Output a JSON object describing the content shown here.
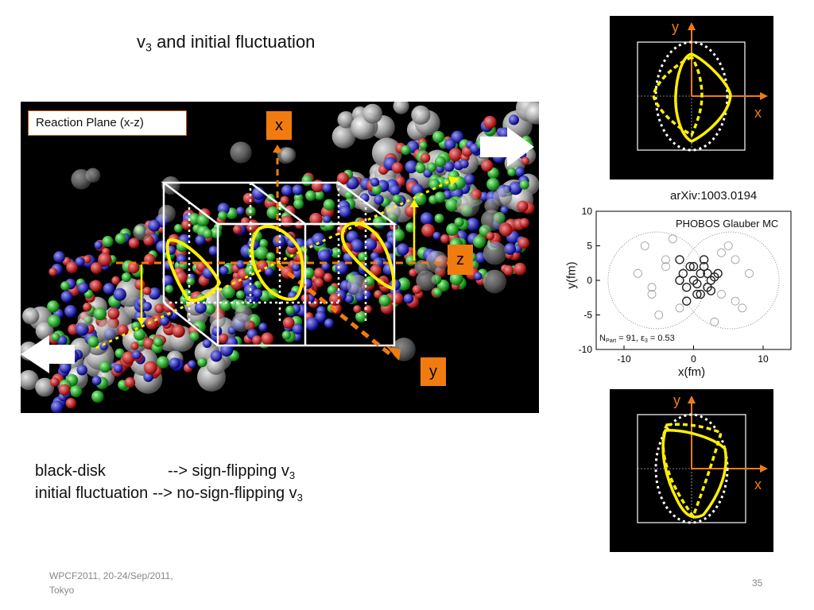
{
  "slide": {
    "title_main": "v",
    "title_sub": "3",
    "title_rest": " and initial fluctuation",
    "reaction_plane_label": "Reaction Plane (x-z)",
    "axis_x": "x",
    "axis_y": "y",
    "axis_z": "z",
    "inset_top": {
      "y_label": "y",
      "x_label": "x"
    },
    "inset_bottom": {
      "y_label": "y",
      "x_label": "x"
    },
    "arxiv_label": "arXiv:1003.0194",
    "glauber_plot": {
      "title": "PHOBOS Glauber MC",
      "ylabel": "y(fm)",
      "xlabel": "x(fm)",
      "annotation": "N",
      "annotation_sub": "Part",
      "annotation_rest": " = 91,  ε",
      "annotation_sub2": "3",
      "annotation_end": " = 0.53"
    },
    "line1": {
      "left": "black-disk",
      "right": "--> sign-flipping v",
      "sub": "3"
    },
    "line2": {
      "left": "initial fluctuation",
      "right": "--> no-sign-flipping v",
      "sub": "3"
    },
    "footer_line1": "WPCF2011, 20-24/Sep/2011,",
    "footer_line2": "Tokyo",
    "page_number": "35"
  },
  "chart_data": {
    "type": "scatter",
    "title": "PHOBOS Glauber MC",
    "xlabel": "x(fm)",
    "ylabel": "y(fm)",
    "xlim": [
      -14,
      14
    ],
    "ylim": [
      -10,
      10
    ],
    "xticks": [
      -10,
      0,
      10
    ],
    "yticks": [
      -10,
      -5,
      0,
      5,
      10
    ],
    "series": [
      {
        "values_desc": "spectator/participant nucleons",
        "x": [
          -8,
          -6,
          -4,
          -2,
          0,
          2,
          4,
          6,
          8,
          -7,
          -5,
          -3,
          3,
          5,
          7,
          -6,
          -4,
          4,
          6
        ],
        "y": [
          1,
          -2,
          3,
          -4,
          2,
          -1,
          4,
          -3,
          1,
          5,
          -5,
          6,
          -6,
          5,
          -4,
          -1,
          2,
          -2,
          3
        ]
      },
      {
        "x": [
          -2,
          -1.5,
          -1,
          -0.5,
          0,
          0.5,
          1,
          1.5,
          2,
          2.5,
          -1,
          0,
          1,
          2,
          3,
          -2,
          0.5,
          1.5,
          2.5,
          3.5
        ],
        "y": [
          3,
          1,
          -1,
          2,
          0,
          -2,
          1,
          3,
          -1,
          0,
          -3,
          2,
          -2,
          1,
          0.5,
          0,
          -0.5,
          2,
          -1.5,
          1
        ]
      }
    ],
    "colors": {
      "light": "#999999",
      "dark": "#222222"
    }
  },
  "colors": {
    "accent": "#f07c10",
    "yellow": "#ffef00",
    "panel": "#000000"
  }
}
